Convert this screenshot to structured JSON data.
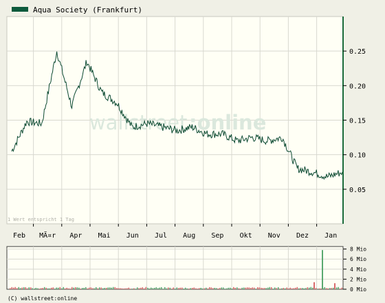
{
  "legend": {
    "label": "Aqua Society (Frankfurt)",
    "swatch_color": "#0c5a3c"
  },
  "watermark": {
    "left": "wallstreet",
    "right": ":online"
  },
  "note": "1 Wert entspricht 1 Tag",
  "copyright": "(C) wallstreet:online",
  "colors": {
    "line": "#0c4a32",
    "background": "#fffff5",
    "frame": "#f0f0e6",
    "grid": "#d8d8d0",
    "volume_up": "#5aa870",
    "volume_down": "#d96a6a"
  },
  "chart_data": [
    {
      "type": "line",
      "series": [
        {
          "name": "Aqua Society (Frankfurt)"
        }
      ],
      "x_tick_labels": [
        "Feb",
        "MÃ¤r",
        "Apr",
        "Mai",
        "Jun",
        "Jul",
        "Aug",
        "Sep",
        "Okt",
        "Nov",
        "Dez",
        "Jan"
      ],
      "x": [
        0,
        1,
        2,
        3,
        4,
        5,
        6,
        7,
        8,
        9,
        10,
        11,
        12,
        13,
        14,
        15,
        16,
        17,
        18,
        19,
        20,
        21,
        22
      ],
      "x_labels_per_point": [
        "Feb",
        "",
        "MÃ¤r",
        "",
        "Apr",
        "",
        "Mai",
        "",
        "Jun",
        "",
        "Jul",
        "",
        "Aug",
        "",
        "Sep",
        "",
        "Okt",
        "",
        "Nov",
        "",
        "Dez",
        "",
        "Jan"
      ],
      "values": [
        0.105,
        0.148,
        0.145,
        0.25,
        0.17,
        0.235,
        0.19,
        0.175,
        0.14,
        0.145,
        0.14,
        0.135,
        0.14,
        0.13,
        0.13,
        0.12,
        0.125,
        0.12,
        0.125,
        0.08,
        0.075,
        0.068,
        0.075
      ],
      "y_ticks": [
        0.05,
        0.1,
        0.15,
        0.2,
        0.25
      ],
      "y_tick_labels": [
        "0.05",
        "0.10",
        "0.15",
        "0.20",
        "0.25"
      ],
      "ylim": [
        0.0,
        0.3
      ],
      "grid": true,
      "y_axis_side": "right"
    },
    {
      "type": "bar",
      "y_tick_labels": [
        "0 Mio",
        "2 Mio",
        "4 Mio",
        "6 Mio",
        "8 Mio"
      ],
      "y_ticks": [
        0,
        2,
        4,
        6,
        8
      ],
      "ylim": [
        0,
        8.5
      ],
      "unit": "Mio",
      "spikes": [
        {
          "month": "Jan",
          "value": 7.8
        },
        {
          "month": "Dez",
          "value": 1.4
        },
        {
          "month": "Jan",
          "value": 1.2
        }
      ],
      "grid": true,
      "y_axis_side": "right"
    }
  ]
}
